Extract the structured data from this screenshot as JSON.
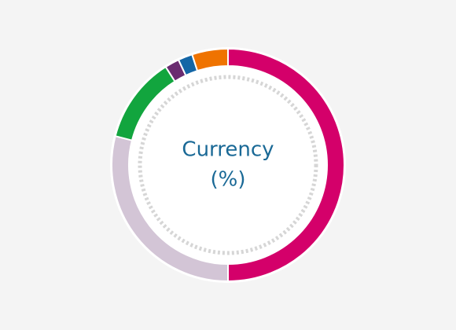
{
  "chart_data": {
    "type": "donut",
    "title": "Currency",
    "subtitle": "(%)",
    "values": [
      50,
      29,
      12,
      2,
      2,
      5
    ],
    "colors": [
      "#d4006a",
      "#d3c5d6",
      "#12a53e",
      "#6a2c70",
      "#1466a6",
      "#ef7300"
    ]
  }
}
